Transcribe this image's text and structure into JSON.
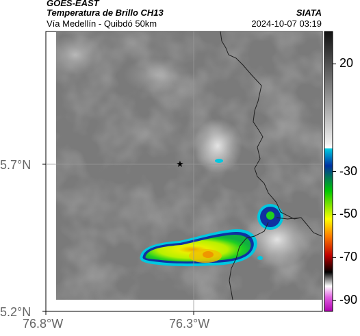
{
  "header": {
    "satellite": "GOES-EAST",
    "product": "Temperatura de Brillo CH13",
    "region": "Vía Medellín - Quibdó 50km",
    "organization": "SIATA",
    "timestamp": "2024-10-07 03:19"
  },
  "axes": {
    "lat_ticks": [
      "5.7°N",
      "5.2°N"
    ],
    "lon_ticks": [
      "76.8°W",
      "76.3°W"
    ]
  },
  "colorbar": {
    "tick_labels": [
      "20",
      "-30",
      "-50",
      "-70",
      "-90"
    ],
    "tick_values": [
      20,
      -30,
      -50,
      -70,
      -90
    ],
    "range": [
      -95,
      35
    ]
  },
  "colors": {
    "cold_cloud_cyan": "#00c8e0",
    "cold_cloud_blue": "#1030a0",
    "cold_cloud_green": "#20d020",
    "cold_cloud_yellow": "#e8f000"
  }
}
